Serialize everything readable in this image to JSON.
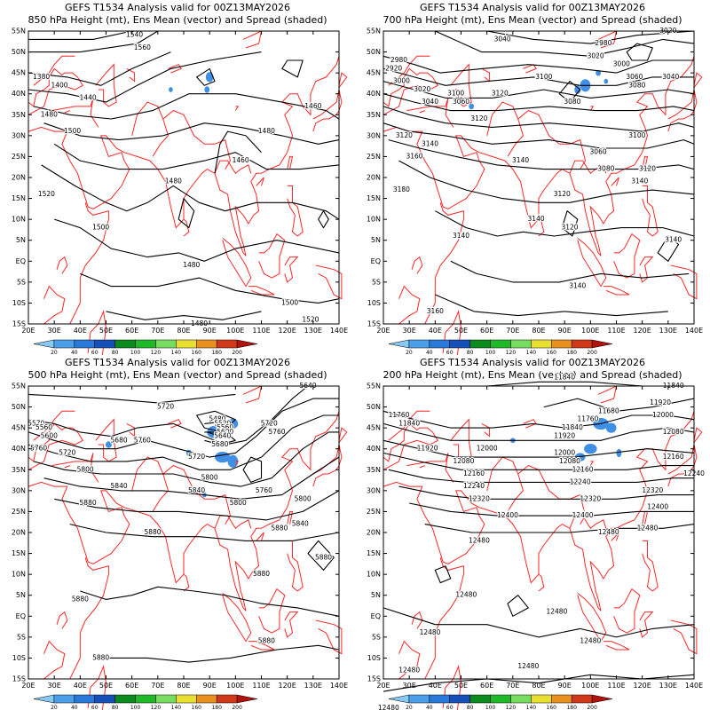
{
  "figure": {
    "lat_ticks": [
      "55N",
      "50N",
      "45N",
      "40N",
      "35N",
      "30N",
      "25N",
      "20N",
      "15N",
      "10N",
      "5N",
      "EQ",
      "5S",
      "10S",
      "15S"
    ],
    "lon_ticks": [
      "20E",
      "30E",
      "40E",
      "50E",
      "60E",
      "70E",
      "80E",
      "90E",
      "100E",
      "110E",
      "120E",
      "130E",
      "140E"
    ],
    "colorbar": {
      "labels": [
        "20",
        "40",
        "60",
        "80",
        "100",
        "120",
        "140",
        "160",
        "180",
        "200"
      ],
      "colors": [
        "#8cc8f4",
        "#4aa0e8",
        "#2a78d8",
        "#1450b8",
        "#0c8a1e",
        "#20b828",
        "#78dc60",
        "#e8e030",
        "#e89020",
        "#d03818",
        "#b01010"
      ]
    },
    "coastline_color": "#ff2828",
    "contour_color": "#000000",
    "spread_color": "#3f8fe6"
  },
  "panels": [
    {
      "title_line1": "GEFS T1534 Analysis valid for 00Z13MAY2026",
      "title_line2": "850 hPa Height (mt), Ens Mean (vector) and Spread (shaded)",
      "contour_labels": [
        {
          "text": "1540",
          "lon": 61,
          "lat": 54
        },
        {
          "text": "1560",
          "lon": 64,
          "lat": 51
        },
        {
          "text": "1380",
          "lon": 25,
          "lat": 44
        },
        {
          "text": "1400",
          "lon": 32,
          "lat": 42
        },
        {
          "text": "1440",
          "lon": 43,
          "lat": 39
        },
        {
          "text": "1480",
          "lon": 28,
          "lat": 35
        },
        {
          "text": "1500",
          "lon": 37,
          "lat": 31
        },
        {
          "text": "1460",
          "lon": 130,
          "lat": 37
        },
        {
          "text": "1480",
          "lon": 112,
          "lat": 31
        },
        {
          "text": "1460",
          "lon": 102,
          "lat": 24
        },
        {
          "text": "1480",
          "lon": 76,
          "lat": 19
        },
        {
          "text": "1520",
          "lon": 27,
          "lat": 16
        },
        {
          "text": "1500",
          "lon": 48,
          "lat": 8
        },
        {
          "text": "1480",
          "lon": 83,
          "lat": -1
        },
        {
          "text": "1500",
          "lon": 121,
          "lat": -10
        },
        {
          "text": "1480",
          "lon": 86,
          "lat": -15
        },
        {
          "text": "1520",
          "lon": 129,
          "lat": -14
        }
      ]
    },
    {
      "title_line1": "GEFS T1534 Analysis valid for 00Z13MAY2026",
      "title_line2": "700 hPa Height (mt), Ens Mean (vector) and Spread (shaded)",
      "contour_labels": [
        {
          "text": "3040",
          "lon": 66,
          "lat": 53
        },
        {
          "text": "2980",
          "lon": 105,
          "lat": 52
        },
        {
          "text": "3020",
          "lon": 130,
          "lat": 55
        },
        {
          "text": "3020",
          "lon": 102,
          "lat": 49
        },
        {
          "text": "3000",
          "lon": 112,
          "lat": 47
        },
        {
          "text": "3060",
          "lon": 117,
          "lat": 44
        },
        {
          "text": "3040",
          "lon": 131,
          "lat": 44
        },
        {
          "text": "3080",
          "lon": 118,
          "lat": 42
        },
        {
          "text": "3100",
          "lon": 82,
          "lat": 44
        },
        {
          "text": "2980",
          "lon": 26,
          "lat": 48
        },
        {
          "text": "2920",
          "lon": 24,
          "lat": 46
        },
        {
          "text": "3000",
          "lon": 27,
          "lat": 43
        },
        {
          "text": "3020",
          "lon": 35,
          "lat": 41
        },
        {
          "text": "3040",
          "lon": 38,
          "lat": 38
        },
        {
          "text": "3100",
          "lon": 48,
          "lat": 40
        },
        {
          "text": "3060",
          "lon": 50,
          "lat": 38
        },
        {
          "text": "3120",
          "lon": 65,
          "lat": 40
        },
        {
          "text": "3080",
          "lon": 93,
          "lat": 38
        },
        {
          "text": "3120",
          "lon": 57,
          "lat": 34
        },
        {
          "text": "3100",
          "lon": 118,
          "lat": 30
        },
        {
          "text": "3120",
          "lon": 28,
          "lat": 30
        },
        {
          "text": "3140",
          "lon": 38,
          "lat": 28
        },
        {
          "text": "3160",
          "lon": 32,
          "lat": 25
        },
        {
          "text": "3060",
          "lon": 103,
          "lat": 26
        },
        {
          "text": "3080",
          "lon": 106,
          "lat": 22
        },
        {
          "text": "3180",
          "lon": 27,
          "lat": 17
        },
        {
          "text": "3140",
          "lon": 73,
          "lat": 24
        },
        {
          "text": "3120",
          "lon": 122,
          "lat": 22
        },
        {
          "text": "3140",
          "lon": 119,
          "lat": 19
        },
        {
          "text": "3120",
          "lon": 89,
          "lat": 16
        },
        {
          "text": "3140",
          "lon": 79,
          "lat": 10
        },
        {
          "text": "3140",
          "lon": 50,
          "lat": 6
        },
        {
          "text": "3120",
          "lon": 92,
          "lat": 8
        },
        {
          "text": "3140",
          "lon": 132,
          "lat": 5
        },
        {
          "text": "3140",
          "lon": 95,
          "lat": -6
        },
        {
          "text": "3160",
          "lon": 40,
          "lat": -12
        },
        {
          "text": "3160",
          "lon": 46,
          "lat": -25
        }
      ]
    },
    {
      "title_line1": "GEFS T1534 Analysis valid for 00Z13MAY2026",
      "title_line2": "500 hPa Height (mt), Ens Mean (vector) and Spread (shaded)",
      "contour_labels": [
        {
          "text": "5720",
          "lon": 73,
          "lat": 50
        },
        {
          "text": "5640",
          "lon": 128,
          "lat": 55
        },
        {
          "text": "5480",
          "lon": 93,
          "lat": 47
        },
        {
          "text": "5520",
          "lon": 95,
          "lat": 46
        },
        {
          "text": "5560",
          "lon": 96,
          "lat": 45
        },
        {
          "text": "5600",
          "lon": 96,
          "lat": 44
        },
        {
          "text": "5640",
          "lon": 95,
          "lat": 43
        },
        {
          "text": "5680",
          "lon": 94,
          "lat": 41
        },
        {
          "text": "5720",
          "lon": 113,
          "lat": 46
        },
        {
          "text": "5760",
          "lon": 116,
          "lat": 44
        },
        {
          "text": "5570",
          "lon": 23,
          "lat": 46
        },
        {
          "text": "5560",
          "lon": 26,
          "lat": 45
        },
        {
          "text": "5600",
          "lon": 28,
          "lat": 43
        },
        {
          "text": "5680",
          "lon": 55,
          "lat": 42
        },
        {
          "text": "5760",
          "lon": 64,
          "lat": 42
        },
        {
          "text": "5760",
          "lon": 24,
          "lat": 40
        },
        {
          "text": "5720",
          "lon": 35,
          "lat": 39
        },
        {
          "text": "5720",
          "lon": 85,
          "lat": 38
        },
        {
          "text": "5800",
          "lon": 42,
          "lat": 35
        },
        {
          "text": "5800",
          "lon": 90,
          "lat": 33
        },
        {
          "text": "5840",
          "lon": 55,
          "lat": 31
        },
        {
          "text": "5840",
          "lon": 85,
          "lat": 30
        },
        {
          "text": "5760",
          "lon": 111,
          "lat": 30
        },
        {
          "text": "5880",
          "lon": 43,
          "lat": 27
        },
        {
          "text": "5800",
          "lon": 101,
          "lat": 27
        },
        {
          "text": "5800",
          "lon": 126,
          "lat": 28
        },
        {
          "text": "5880",
          "lon": 117,
          "lat": 21
        },
        {
          "text": "5880",
          "lon": 68,
          "lat": 20
        },
        {
          "text": "5840",
          "lon": 125,
          "lat": 22
        },
        {
          "text": "5880",
          "lon": 134,
          "lat": 14
        },
        {
          "text": "5880",
          "lon": 110,
          "lat": 10
        },
        {
          "text": "5880",
          "lon": 40,
          "lat": 4
        },
        {
          "text": "5880",
          "lon": 112,
          "lat": -6
        },
        {
          "text": "5880",
          "lon": 48,
          "lat": -10
        }
      ]
    },
    {
      "title_line1": "GEFS T1534 Analysis valid for 00Z13MAY2026",
      "title_line2": "200 hPa Height (mt), Ens Mean (vector) and Spread (shaded)",
      "contour_labels": [
        {
          "text": "11840",
          "lon": 90,
          "lat": 57
        },
        {
          "text": "11840",
          "lon": 132,
          "lat": 55
        },
        {
          "text": "11920",
          "lon": 127,
          "lat": 51
        },
        {
          "text": "11680",
          "lon": 107,
          "lat": 49
        },
        {
          "text": "12000",
          "lon": 128,
          "lat": 48
        },
        {
          "text": "11760",
          "lon": 99,
          "lat": 47
        },
        {
          "text": "11760",
          "lon": 26,
          "lat": 48
        },
        {
          "text": "11840",
          "lon": 30,
          "lat": 46
        },
        {
          "text": "11840",
          "lon": 93,
          "lat": 45
        },
        {
          "text": "12080",
          "lon": 132,
          "lat": 44
        },
        {
          "text": "11920",
          "lon": 90,
          "lat": 43
        },
        {
          "text": "12000",
          "lon": 60,
          "lat": 40
        },
        {
          "text": "11920",
          "lon": 37,
          "lat": 40
        },
        {
          "text": "12000",
          "lon": 90,
          "lat": 39
        },
        {
          "text": "12160",
          "lon": 132,
          "lat": 38
        },
        {
          "text": "12080",
          "lon": 51,
          "lat": 37
        },
        {
          "text": "12080",
          "lon": 92,
          "lat": 37
        },
        {
          "text": "12160",
          "lon": 97,
          "lat": 35
        },
        {
          "text": "12240",
          "lon": 140,
          "lat": 34
        },
        {
          "text": "12160",
          "lon": 55,
          "lat": 34
        },
        {
          "text": "12240",
          "lon": 96,
          "lat": 32
        },
        {
          "text": "12240",
          "lon": 55,
          "lat": 31
        },
        {
          "text": "12320",
          "lon": 124,
          "lat": 30
        },
        {
          "text": "12320",
          "lon": 57,
          "lat": 28
        },
        {
          "text": "12320",
          "lon": 100,
          "lat": 28
        },
        {
          "text": "12400",
          "lon": 126,
          "lat": 26
        },
        {
          "text": "12400",
          "lon": 97,
          "lat": 24
        },
        {
          "text": "12400",
          "lon": 68,
          "lat": 24
        },
        {
          "text": "12480",
          "lon": 122,
          "lat": 21
        },
        {
          "text": "12480",
          "lon": 107,
          "lat": 20
        },
        {
          "text": "12480",
          "lon": 57,
          "lat": 18
        },
        {
          "text": "12480",
          "lon": 87,
          "lat": 1
        },
        {
          "text": "12480",
          "lon": 52,
          "lat": 5
        },
        {
          "text": "12480",
          "lon": 38,
          "lat": -4
        },
        {
          "text": "12480",
          "lon": 100,
          "lat": -6
        },
        {
          "text": "12480",
          "lon": 76,
          "lat": -12
        },
        {
          "text": "12480",
          "lon": 30,
          "lat": -13
        },
        {
          "text": "12480",
          "lon": 22,
          "lat": -22
        }
      ]
    }
  ]
}
